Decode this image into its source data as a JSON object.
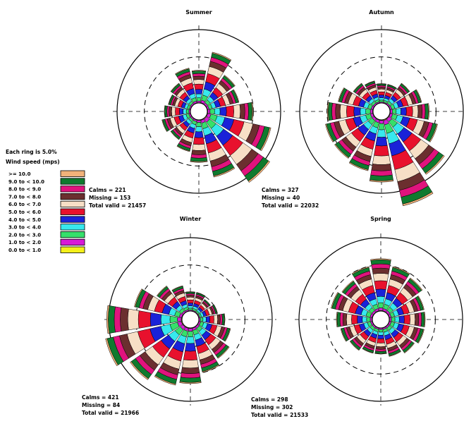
{
  "ring_note": "Each ring is 5.0%",
  "legend_title": "Wind speed (mps)",
  "legend": [
    {
      "label": ">= 10.0",
      "color": "#f2b27a"
    },
    {
      "label": "9.0 to < 10.0",
      "color": "#0f7a2e"
    },
    {
      "label": "8.0 to < 9.0",
      "color": "#e0137d"
    },
    {
      "label": "7.0 to < 8.0",
      "color": "#6b2f2f"
    },
    {
      "label": "6.0 to < 7.0",
      "color": "#f7dfc6"
    },
    {
      "label": "5.0 to < 6.0",
      "color": "#e8112d"
    },
    {
      "label": "4.0 to < 5.0",
      "color": "#1a22d8"
    },
    {
      "label": "3.0 to < 4.0",
      "color": "#37e8ee"
    },
    {
      "label": "2.0 to < 3.0",
      "color": "#36e06b"
    },
    {
      "label": "1.0 to < 2.0",
      "color": "#d81ad8"
    },
    {
      "label": "0.0 to < 1.0",
      "color": "#f4f01a"
    }
  ],
  "chart_data": [
    {
      "type": "wind-rose",
      "title": "Summer",
      "ring_step_percent": 5,
      "calms": "Calms = 221",
      "missing": "Missing = 153",
      "total": "Total valid = 21457",
      "directions": [
        0,
        22.5,
        45,
        67.5,
        90,
        112.5,
        135,
        157.5,
        180,
        202.5,
        225,
        247.5,
        270,
        292.5,
        315,
        337.5
      ],
      "totals_percent": [
        6.0,
        9.6,
        6.6,
        6.0,
        8.4,
        12.0,
        14.4,
        10.8,
        7.8,
        6.0,
        4.8,
        5.4,
        4.8,
        4.2,
        4.8,
        6.6
      ]
    },
    {
      "type": "wind-rose",
      "title": "Autumn",
      "ring_step_percent": 5,
      "calms": "Calms = 327",
      "missing": "Missing = 40",
      "total": "Total valid = 22032",
      "directions": [
        0,
        22.5,
        45,
        67.5,
        90,
        112.5,
        135,
        157.5,
        180,
        202.5,
        225,
        247.5,
        270,
        292.5,
        315,
        337.5
      ],
      "totals_percent": [
        3.6,
        3.6,
        4.8,
        6.0,
        7.2,
        9.0,
        12.6,
        16.2,
        11.4,
        9.6,
        9.0,
        9.0,
        8.4,
        6.6,
        4.8,
        4.2
      ]
    },
    {
      "type": "wind-rose",
      "title": "Winter",
      "ring_step_percent": 5,
      "calms": "Calms = 421",
      "missing": "Missing = 84",
      "total": "Total valid = 21966",
      "directions": [
        0,
        22.5,
        45,
        67.5,
        90,
        112.5,
        135,
        157.5,
        180,
        202.5,
        225,
        247.5,
        270,
        292.5,
        315,
        337.5
      ],
      "totals_percent": [
        3.6,
        3.6,
        3.0,
        3.6,
        4.8,
        6.0,
        7.2,
        8.4,
        10.2,
        10.8,
        12.0,
        14.4,
        13.8,
        9.0,
        6.0,
        4.8
      ]
    },
    {
      "type": "wind-rose",
      "title": "Spring",
      "ring_step_percent": 5,
      "calms": "Calms = 298",
      "missing": "Missing = 302",
      "total": "Total valid = 21533",
      "directions": [
        0,
        22.5,
        45,
        67.5,
        90,
        112.5,
        135,
        157.5,
        180,
        202.5,
        225,
        247.5,
        270,
        292.5,
        315,
        337.5
      ],
      "totals_percent": [
        9.6,
        8.4,
        7.8,
        6.6,
        6.6,
        6.6,
        6.0,
        5.4,
        4.8,
        4.8,
        5.4,
        6.0,
        6.6,
        7.8,
        7.2,
        8.4
      ]
    }
  ]
}
